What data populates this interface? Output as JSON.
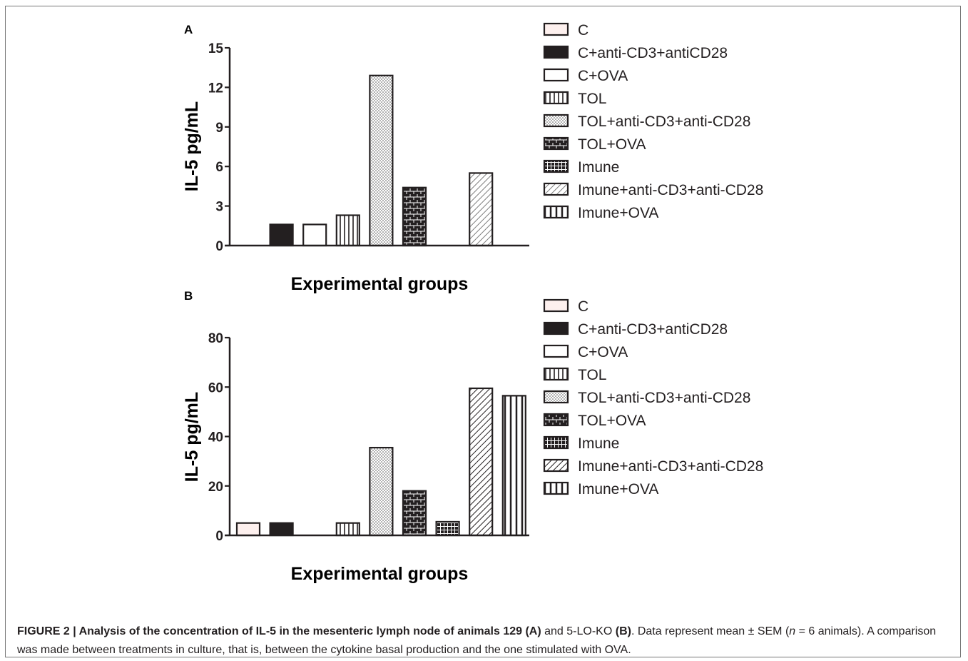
{
  "figure": {
    "caption": {
      "prefix": "FIGURE 2 | ",
      "title_bold": "Analysis of the concentration of IL-5 in the mesenteric lymph node of animals 129 (A)",
      "mid": " and 5-LO-KO ",
      "label_b": "(B)",
      "text1": ". Data represent mean ± SEM (",
      "n_var": "n",
      "text2": " = 6 animals). A comparison was made between treatments in culture, that is, between the cytokine basal production and the one stimulated with OVA."
    }
  },
  "chart_data": [
    {
      "type": "bar",
      "panel_label": "A",
      "xlabel": "Experimental groups",
      "ylabel": "IL-5 pg/mL",
      "ylim": [
        0,
        15
      ],
      "yticks": [
        0,
        3,
        6,
        9,
        12,
        15
      ],
      "categories": [
        "C",
        "C+anti-CD3+antiCD28",
        "C+OVA",
        "TOL",
        "TOL+anti-CD3+anti-CD28",
        "TOL+OVA",
        "Imune",
        "Imune+anti-CD3+anti-CD28",
        "Imune+OVA"
      ],
      "values": [
        0,
        1.6,
        1.6,
        2.3,
        12.9,
        4.4,
        0,
        5.5,
        0
      ],
      "patterns": [
        "pink",
        "solid",
        "white",
        "vlines",
        "dots",
        "bricks",
        "grid",
        "diag-gray",
        "bars"
      ],
      "legend_position": "right",
      "grid": false
    },
    {
      "type": "bar",
      "panel_label": "B",
      "xlabel": "Experimental groups",
      "ylabel": "IL-5 pg/mL",
      "ylim": [
        0,
        80
      ],
      "yticks": [
        0,
        20,
        40,
        60,
        80
      ],
      "categories": [
        "C",
        "C+anti-CD3+antiCD28",
        "C+OVA",
        "TOL",
        "TOL+anti-CD3+anti-CD28",
        "TOL+OVA",
        "Imune",
        "Imune+anti-CD3+anti-CD28",
        "Imune+OVA"
      ],
      "values": [
        5,
        5,
        0,
        5,
        35.5,
        18,
        5.5,
        59.5,
        56.5
      ],
      "patterns": [
        "pink",
        "solid",
        "white",
        "vlines",
        "dots",
        "bricks",
        "grid",
        "diag",
        "bars"
      ],
      "legend_position": "right",
      "grid": false
    }
  ]
}
